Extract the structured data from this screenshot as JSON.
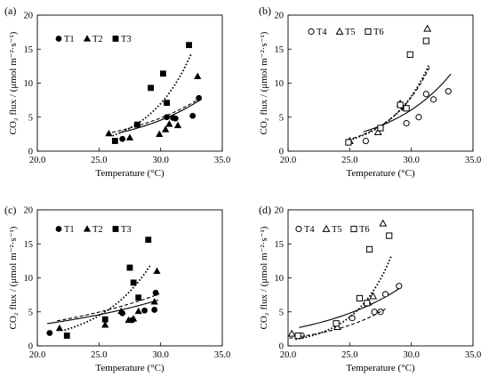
{
  "chart_data": [
    {
      "type": "scatter",
      "panel_label": "(a)",
      "xlabel": "Temperature (°C)",
      "ylabel": "CO₂ flux / (μmol m⁻²·s⁻¹)",
      "xlim": [
        20,
        35
      ],
      "ylim": [
        0,
        20
      ],
      "xticks": [
        "20.0",
        "25.0",
        "30.0",
        "35.0"
      ],
      "yticks": [
        "0",
        "5",
        "10",
        "15",
        "20"
      ],
      "legend_position": "top-left",
      "series": [
        {
          "name": "T1",
          "marker": "filled-circle",
          "line": "solid",
          "color": "#000000",
          "x": [
            26.9,
            30.5,
            31.0,
            31.2,
            32.6,
            33.1
          ],
          "y": [
            1.8,
            5.0,
            4.9,
            4.8,
            5.2,
            7.8
          ],
          "fit": {
            "a": 0.041,
            "b": 0.157
          }
        },
        {
          "name": "T2",
          "marker": "filled-triangle",
          "line": "dashed",
          "color": "#000000",
          "x": [
            25.8,
            27.5,
            29.9,
            30.4,
            30.7,
            31.4,
            33.0
          ],
          "y": [
            2.6,
            2.0,
            2.5,
            3.2,
            4.0,
            3.8,
            11.0
          ],
          "fit": {
            "a": 0.063,
            "b": 0.145
          }
        },
        {
          "name": "T3",
          "marker": "filled-square",
          "line": "dotted",
          "color": "#000000",
          "x": [
            26.3,
            28.1,
            29.2,
            30.2,
            30.5,
            32.3
          ],
          "y": [
            1.5,
            3.9,
            9.3,
            11.4,
            7.1,
            15.6
          ],
          "fit": {
            "a": 0.0012,
            "b": 0.289
          }
        }
      ]
    },
    {
      "type": "scatter",
      "panel_label": "(b)",
      "xlabel": "Temperature (°C)",
      "ylabel": "CO₂ flux / (μmol m⁻²·s⁻¹)",
      "xlim": [
        20,
        35
      ],
      "ylim": [
        0,
        20
      ],
      "xticks": [
        "20.0",
        "25.0",
        "30.0",
        "35.0"
      ],
      "yticks": [
        "0",
        "5",
        "10",
        "15",
        "20"
      ],
      "legend_position": "top-left",
      "series": [
        {
          "name": "T4",
          "marker": "open-circle",
          "line": "solid",
          "color": "#000000",
          "x": [
            26.3,
            29.6,
            30.6,
            31.2,
            31.8,
            33.0
          ],
          "y": [
            1.5,
            4.1,
            5.0,
            8.4,
            7.6,
            8.8
          ],
          "fit": {
            "a": 0.0175,
            "b": 0.195
          }
        },
        {
          "name": "T5",
          "marker": "open-triangle",
          "line": "dashed",
          "color": "#000000",
          "x": [
            25.0,
            27.3,
            29.1,
            29.5,
            31.3
          ],
          "y": [
            1.5,
            2.8,
            7.0,
            6.4,
            18.0
          ],
          "fit": {
            "a": 0.00095,
            "b": 0.301
          }
        },
        {
          "name": "T6",
          "marker": "open-square",
          "line": "dotted",
          "color": "#000000",
          "x": [
            24.9,
            27.5,
            29.1,
            29.6,
            29.9,
            31.2
          ],
          "y": [
            1.3,
            3.4,
            6.8,
            6.3,
            14.2,
            16.2
          ],
          "fit": {
            "a": 0.00058,
            "b": 0.318
          }
        }
      ]
    },
    {
      "type": "scatter",
      "panel_label": "(c)",
      "xlabel": "Temperature (°C)",
      "ylabel": "CO₂ flux / (μmol m⁻²·s⁻¹)",
      "xlim": [
        20,
        35
      ],
      "ylim": [
        0,
        20
      ],
      "xticks": [
        "20.0",
        "25.0",
        "30.0",
        "35.0"
      ],
      "yticks": [
        "0",
        "5",
        "10",
        "15",
        "20"
      ],
      "legend_position": "top-left",
      "series": [
        {
          "name": "T1",
          "marker": "filled-circle",
          "line": "solid",
          "color": "#000000",
          "x": [
            21.0,
            26.9,
            27.7,
            28.7,
            29.5,
            29.6
          ],
          "y": [
            1.9,
            4.8,
            3.8,
            5.2,
            5.3,
            7.8
          ],
          "fit": {
            "a": 0.62,
            "b": 0.08
          }
        },
        {
          "name": "T2",
          "marker": "filled-triangle",
          "line": "dashed",
          "color": "#000000",
          "x": [
            21.8,
            25.5,
            26.8,
            27.4,
            27.8,
            28.2,
            29.5,
            29.7
          ],
          "y": [
            2.6,
            3.1,
            5.1,
            3.8,
            4.0,
            5.1,
            6.5,
            11.0
          ],
          "fit": {
            "a": 0.55,
            "b": 0.088
          }
        },
        {
          "name": "T3",
          "marker": "filled-square",
          "line": "dotted",
          "color": "#000000",
          "x": [
            22.4,
            25.5,
            27.5,
            27.8,
            28.2,
            29.0
          ],
          "y": [
            1.5,
            3.9,
            11.5,
            9.3,
            7.1,
            15.6
          ],
          "fit": {
            "a": 0.0125,
            "b": 0.235
          }
        }
      ]
    },
    {
      "type": "scatter",
      "panel_label": "(d)",
      "xlabel": "Temperature (°C)",
      "ylabel": "CO₂ flux / (μmol m⁻²·s⁻¹)",
      "xlim": [
        20,
        35
      ],
      "ylim": [
        0,
        20
      ],
      "xticks": [
        "20.0",
        "25.0",
        "30.0",
        "35.0"
      ],
      "yticks": [
        "0",
        "5",
        "10",
        "15",
        "20"
      ],
      "legend_position": "top-left",
      "series": [
        {
          "name": "T4",
          "marker": "open-circle",
          "line": "solid",
          "color": "#000000",
          "x": [
            21.1,
            25.2,
            27.0,
            27.5,
            27.9,
            29.0
          ],
          "y": [
            1.5,
            4.1,
            5.0,
            5.0,
            7.6,
            8.8
          ],
          "fit": {
            "a": 0.145,
            "b": 0.14
          }
        },
        {
          "name": "T5",
          "marker": "open-triangle",
          "line": "dashed",
          "color": "#000000",
          "x": [
            20.3,
            24.0,
            26.5,
            26.9,
            27.7
          ],
          "y": [
            1.8,
            2.8,
            6.4,
            7.3,
            18.0
          ],
          "fit": {
            "a": 0.0205,
            "b": 0.2
          }
        },
        {
          "name": "T6",
          "marker": "open-square",
          "line": "dotted",
          "color": "#000000",
          "x": [
            20.8,
            23.9,
            25.8,
            26.4,
            26.6,
            28.2
          ],
          "y": [
            1.5,
            3.3,
            7.0,
            6.3,
            14.2,
            16.2
          ],
          "fit": {
            "a": 0.00093,
            "b": 0.337
          }
        }
      ]
    }
  ]
}
